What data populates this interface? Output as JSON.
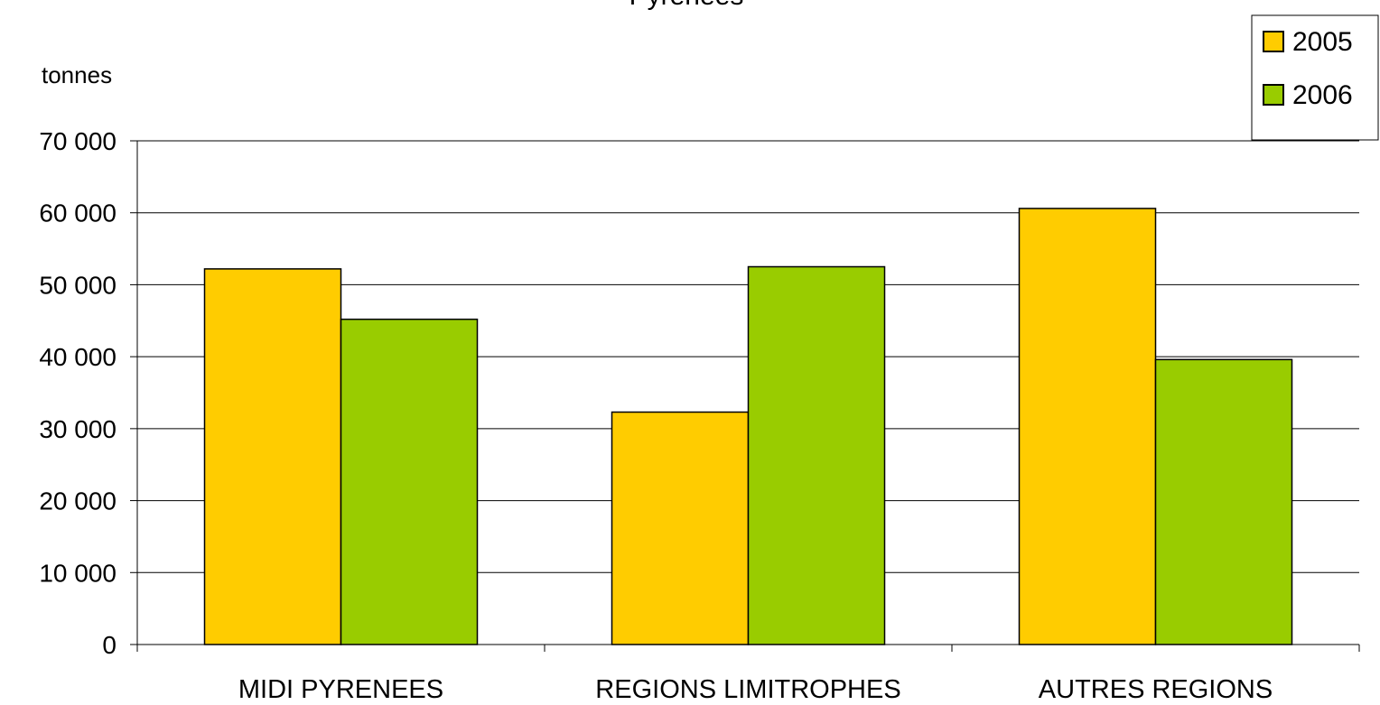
{
  "chart_data": {
    "type": "bar",
    "title": "Pyrenees",
    "ylabel": "tonnes",
    "xlabel": "",
    "categories": [
      "MIDI PYRENEES",
      "REGIONS LIMITROPHES",
      "AUTRES REGIONS"
    ],
    "series": [
      {
        "name": "2005",
        "color": "#ffcc00",
        "values": [
          52200,
          32300,
          60600
        ]
      },
      {
        "name": "2006",
        "color": "#99cc00",
        "values": [
          45200,
          52500,
          39600
        ]
      }
    ],
    "ylim": [
      0,
      70000
    ],
    "yticks": [
      0,
      10000,
      20000,
      30000,
      40000,
      50000,
      60000,
      70000
    ],
    "ytick_labels": [
      "0",
      "10 000",
      "20 000",
      "30 000",
      "40 000",
      "50 000",
      "60 000",
      "70 000"
    ],
    "grid": true,
    "legend_position": "top-right"
  }
}
